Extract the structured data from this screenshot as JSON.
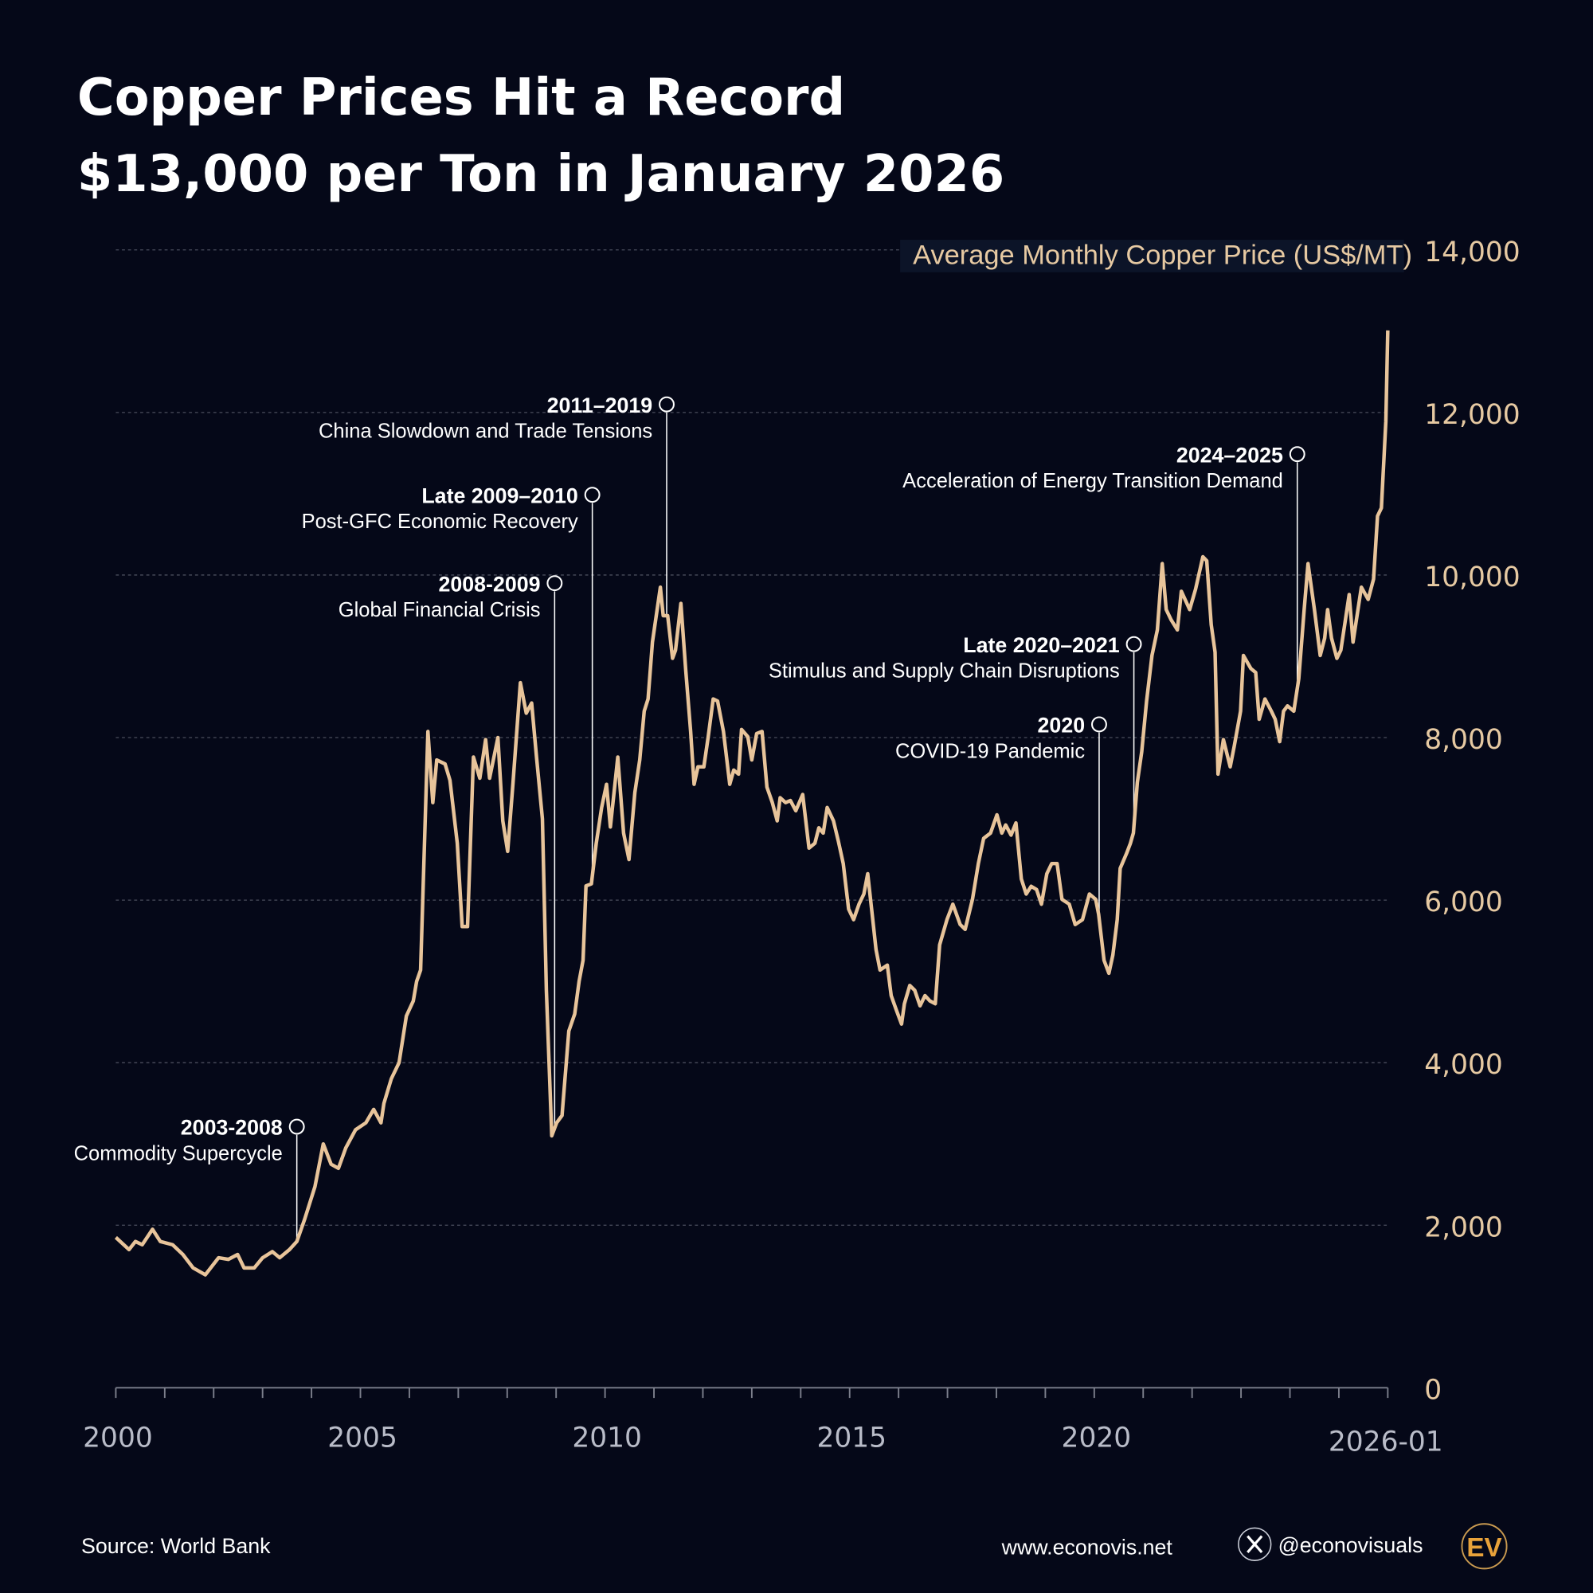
{
  "title": {
    "line1": "Copper Prices Hit a Record",
    "line2": "$13,000 per Ton in January 2026"
  },
  "footer": {
    "source": "Source: World Bank",
    "website": "www.econovis.net",
    "social_handle": "@econovisuals",
    "social_icon": "x-logo-icon",
    "logo": "EV"
  },
  "colors": {
    "background": "#050818",
    "line": "#e8c49a",
    "grid": "#4a4d5c",
    "annotation": "#ffffff",
    "logo": "#e8a23a"
  },
  "chart_data": {
    "type": "line",
    "title": "Copper Prices Hit a Record $13,000 per Ton in January 2026",
    "ylabel": "Average Monthly Copper Price (US$/MT)",
    "xlabel": "",
    "xlim": [
      2000,
      2026.0
    ],
    "ylim": [
      0,
      14000
    ],
    "grid": "horizontal dashed",
    "y_axis_side": "right",
    "yticks": [
      "0",
      "2,000",
      "4,000",
      "6,000",
      "8,000",
      "10,000",
      "12,000",
      "14,000"
    ],
    "xticks": [
      "2000",
      "2005",
      "2010",
      "2015",
      "2020",
      "2026-01"
    ],
    "series": [
      {
        "points": [
          [
            2000.0,
            1850
          ],
          [
            2000.27,
            1700
          ],
          [
            2000.4,
            1800
          ],
          [
            2000.54,
            1760
          ],
          [
            2000.75,
            1950
          ],
          [
            2000.91,
            1800
          ],
          [
            2001.16,
            1760
          ],
          [
            2001.37,
            1640
          ],
          [
            2001.58,
            1475
          ],
          [
            2001.83,
            1390
          ],
          [
            2002.1,
            1600
          ],
          [
            2002.3,
            1580
          ],
          [
            2002.49,
            1640
          ],
          [
            2002.62,
            1475
          ],
          [
            2002.83,
            1475
          ],
          [
            2003.0,
            1600
          ],
          [
            2003.2,
            1675
          ],
          [
            2003.35,
            1600
          ],
          [
            2003.55,
            1700
          ],
          [
            2003.7,
            1800
          ],
          [
            2003.86,
            2075
          ],
          [
            2004.07,
            2475
          ],
          [
            2004.24,
            3000
          ],
          [
            2004.4,
            2750
          ],
          [
            2004.55,
            2700
          ],
          [
            2004.7,
            2950
          ],
          [
            2004.9,
            3175
          ],
          [
            2005.11,
            3260
          ],
          [
            2005.27,
            3425
          ],
          [
            2005.42,
            3260
          ],
          [
            2005.48,
            3500
          ],
          [
            2005.63,
            3800
          ],
          [
            2005.79,
            4000
          ],
          [
            2005.94,
            4575
          ],
          [
            2006.08,
            4760
          ],
          [
            2006.15,
            5000
          ],
          [
            2006.23,
            5140
          ],
          [
            2006.38,
            8075
          ],
          [
            2006.48,
            7200
          ],
          [
            2006.56,
            7725
          ],
          [
            2006.73,
            7675
          ],
          [
            2006.83,
            7475
          ],
          [
            2006.98,
            6700
          ],
          [
            2007.08,
            5675
          ],
          [
            2007.19,
            5675
          ],
          [
            2007.31,
            7760
          ],
          [
            2007.44,
            7500
          ],
          [
            2007.56,
            7975
          ],
          [
            2007.64,
            7500
          ],
          [
            2007.81,
            8000
          ],
          [
            2007.91,
            6975
          ],
          [
            2008.01,
            6600
          ],
          [
            2008.12,
            7450
          ],
          [
            2008.27,
            8675
          ],
          [
            2008.39,
            8300
          ],
          [
            2008.5,
            8425
          ],
          [
            2008.6,
            7760
          ],
          [
            2008.72,
            7000
          ],
          [
            2008.8,
            4890
          ],
          [
            2008.91,
            3100
          ],
          [
            2009.01,
            3260
          ],
          [
            2009.12,
            3350
          ],
          [
            2009.26,
            4390
          ],
          [
            2009.38,
            4600
          ],
          [
            2009.47,
            5000
          ],
          [
            2009.55,
            5260
          ],
          [
            2009.61,
            6175
          ],
          [
            2009.72,
            6200
          ],
          [
            2009.82,
            6700
          ],
          [
            2009.93,
            7140
          ],
          [
            2010.03,
            7425
          ],
          [
            2010.11,
            6900
          ],
          [
            2010.26,
            7760
          ],
          [
            2010.38,
            6825
          ],
          [
            2010.49,
            6500
          ],
          [
            2010.61,
            7325
          ],
          [
            2010.71,
            7725
          ],
          [
            2010.8,
            8325
          ],
          [
            2010.88,
            8475
          ],
          [
            2010.97,
            9175
          ],
          [
            2011.13,
            9850
          ],
          [
            2011.19,
            9500
          ],
          [
            2011.28,
            9500
          ],
          [
            2011.38,
            8975
          ],
          [
            2011.44,
            9075
          ],
          [
            2011.55,
            9650
          ],
          [
            2011.65,
            8825
          ],
          [
            2011.75,
            8075
          ],
          [
            2011.82,
            7425
          ],
          [
            2011.9,
            7640
          ],
          [
            2012.02,
            7640
          ],
          [
            2012.11,
            8010
          ],
          [
            2012.21,
            8475
          ],
          [
            2012.3,
            8450
          ],
          [
            2012.42,
            8075
          ],
          [
            2012.55,
            7425
          ],
          [
            2012.63,
            7600
          ],
          [
            2012.73,
            7550
          ],
          [
            2012.79,
            8100
          ],
          [
            2012.92,
            8010
          ],
          [
            2013.0,
            7725
          ],
          [
            2013.1,
            8050
          ],
          [
            2013.21,
            8075
          ],
          [
            2013.31,
            7390
          ],
          [
            2013.42,
            7200
          ],
          [
            2013.52,
            6975
          ],
          [
            2013.58,
            7260
          ],
          [
            2013.69,
            7200
          ],
          [
            2013.79,
            7225
          ],
          [
            2013.9,
            7100
          ],
          [
            2014.04,
            7300
          ],
          [
            2014.17,
            6640
          ],
          [
            2014.29,
            6700
          ],
          [
            2014.37,
            6890
          ],
          [
            2014.46,
            6825
          ],
          [
            2014.54,
            7140
          ],
          [
            2014.67,
            6975
          ],
          [
            2014.77,
            6725
          ],
          [
            2014.87,
            6450
          ],
          [
            2014.98,
            5890
          ],
          [
            2015.08,
            5760
          ],
          [
            2015.19,
            5950
          ],
          [
            2015.29,
            6075
          ],
          [
            2015.37,
            6325
          ],
          [
            2015.46,
            5825
          ],
          [
            2015.54,
            5390
          ],
          [
            2015.62,
            5140
          ],
          [
            2015.77,
            5200
          ],
          [
            2015.85,
            4825
          ],
          [
            2015.96,
            4640
          ],
          [
            2016.06,
            4475
          ],
          [
            2016.12,
            4725
          ],
          [
            2016.23,
            4950
          ],
          [
            2016.33,
            4890
          ],
          [
            2016.44,
            4700
          ],
          [
            2016.54,
            4825
          ],
          [
            2016.64,
            4760
          ],
          [
            2016.75,
            4725
          ],
          [
            2016.84,
            5450
          ],
          [
            2016.99,
            5760
          ],
          [
            2017.11,
            5950
          ],
          [
            2017.26,
            5700
          ],
          [
            2017.36,
            5640
          ],
          [
            2017.51,
            6010
          ],
          [
            2017.63,
            6450
          ],
          [
            2017.74,
            6760
          ],
          [
            2017.88,
            6825
          ],
          [
            2018.01,
            7050
          ],
          [
            2018.11,
            6825
          ],
          [
            2018.19,
            6925
          ],
          [
            2018.3,
            6800
          ],
          [
            2018.4,
            6950
          ],
          [
            2018.51,
            6260
          ],
          [
            2018.61,
            6075
          ],
          [
            2018.71,
            6170
          ],
          [
            2018.82,
            6130
          ],
          [
            2018.92,
            5950
          ],
          [
            2019.03,
            6325
          ],
          [
            2019.13,
            6450
          ],
          [
            2019.24,
            6450
          ],
          [
            2019.34,
            6010
          ],
          [
            2019.49,
            5950
          ],
          [
            2019.61,
            5700
          ],
          [
            2019.76,
            5760
          ],
          [
            2019.9,
            6075
          ],
          [
            2020.03,
            6010
          ],
          [
            2020.09,
            5825
          ],
          [
            2020.2,
            5260
          ],
          [
            2020.3,
            5100
          ],
          [
            2020.38,
            5325
          ],
          [
            2020.47,
            5760
          ],
          [
            2020.53,
            6390
          ],
          [
            2020.66,
            6575
          ],
          [
            2020.74,
            6700
          ],
          [
            2020.8,
            6825
          ],
          [
            2020.88,
            7450
          ],
          [
            2020.97,
            7825
          ],
          [
            2021.07,
            8450
          ],
          [
            2021.18,
            9010
          ],
          [
            2021.29,
            9325
          ],
          [
            2021.39,
            10140
          ],
          [
            2021.47,
            9575
          ],
          [
            2021.57,
            9450
          ],
          [
            2021.7,
            9325
          ],
          [
            2021.78,
            9800
          ],
          [
            2021.95,
            9575
          ],
          [
            2022.07,
            9825
          ],
          [
            2022.22,
            10225
          ],
          [
            2022.3,
            10175
          ],
          [
            2022.39,
            9390
          ],
          [
            2022.47,
            9050
          ],
          [
            2022.53,
            7550
          ],
          [
            2022.64,
            7975
          ],
          [
            2022.78,
            7640
          ],
          [
            2022.86,
            7890
          ],
          [
            2022.99,
            8325
          ],
          [
            2023.05,
            9010
          ],
          [
            2023.2,
            8850
          ],
          [
            2023.3,
            8800
          ],
          [
            2023.37,
            8225
          ],
          [
            2023.49,
            8475
          ],
          [
            2023.62,
            8325
          ],
          [
            2023.7,
            8225
          ],
          [
            2023.79,
            7950
          ],
          [
            2023.87,
            8325
          ],
          [
            2023.95,
            8390
          ],
          [
            2024.08,
            8325
          ],
          [
            2024.18,
            8725
          ],
          [
            2024.29,
            9575
          ],
          [
            2024.37,
            10140
          ],
          [
            2024.5,
            9575
          ],
          [
            2024.62,
            9010
          ],
          [
            2024.71,
            9225
          ],
          [
            2024.77,
            9575
          ],
          [
            2024.85,
            9225
          ],
          [
            2024.96,
            8975
          ],
          [
            2025.04,
            9075
          ],
          [
            2025.12,
            9390
          ],
          [
            2025.21,
            9760
          ],
          [
            2025.29,
            9175
          ],
          [
            2025.46,
            9850
          ],
          [
            2025.6,
            9700
          ],
          [
            2025.71,
            9950
          ],
          [
            2025.79,
            10725
          ],
          [
            2025.87,
            10825
          ],
          [
            2025.96,
            11890
          ],
          [
            2026.0,
            13010
          ]
        ]
      }
    ],
    "annotations": [
      {
        "period": "2003-2008",
        "text": "Commodity Supercycle",
        "x": 2003.7
      },
      {
        "period": "2008-2009",
        "text": "Global Financial Crisis",
        "x": 2008.97
      },
      {
        "period": "Late 2009–2010",
        "text": "Post-GFC Economic Recovery",
        "x": 2009.74
      },
      {
        "period": "2011–2019",
        "text": "China Slowdown and Trade Tensions",
        "x": 2011.26
      },
      {
        "period": "2020",
        "text": "COVID-19 Pandemic",
        "x": 2020.1
      },
      {
        "period": "Late 2020–2021",
        "text": "Stimulus and Supply Chain Disruptions",
        "x": 2020.81
      },
      {
        "period": "2024–2025",
        "text": "Acceleration of Energy Transition Demand",
        "x": 2024.15
      }
    ]
  }
}
